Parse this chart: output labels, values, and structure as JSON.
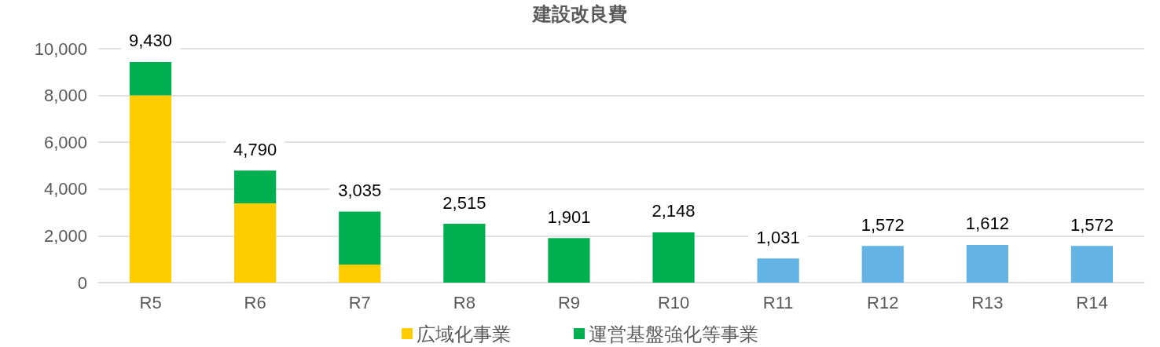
{
  "chart_data": {
    "type": "bar",
    "title": "建設改良費",
    "stacked": true,
    "categories": [
      "R5",
      "R6",
      "R7",
      "R8",
      "R9",
      "R10",
      "R11",
      "R12",
      "R13",
      "R14"
    ],
    "series": [
      {
        "name": "広域化事業",
        "color": "#ffcc00",
        "values": [
          8000,
          3390,
          770,
          null,
          null,
          null,
          null,
          null,
          null,
          null
        ]
      },
      {
        "name": "運営基盤強化等事業",
        "color": "#00b050",
        "values": [
          1430,
          1400,
          2265,
          2515,
          1901,
          2148,
          null,
          null,
          null,
          null
        ]
      },
      {
        "color": "#63b4e4",
        "values": [
          null,
          null,
          null,
          null,
          null,
          null,
          1031,
          1572,
          1612,
          1572
        ]
      }
    ],
    "totals": [
      "9,430",
      "4,790",
      "3,035",
      "2,515",
      "1,901",
      "2,148",
      "1,031",
      "1,572",
      "1,612",
      "1,572"
    ],
    "ylim": [
      0,
      10000
    ],
    "yticks": [
      0,
      {
        "value": 2000,
        "label": "2,000"
      },
      {
        "value": 4000,
        "label": "4,000"
      },
      {
        "value": 6000,
        "label": "6,000"
      },
      {
        "value": 8000,
        "label": "8,000"
      },
      {
        "value": 10000,
        "label": "10,000"
      }
    ],
    "grid": "y",
    "legend": "bottom"
  }
}
